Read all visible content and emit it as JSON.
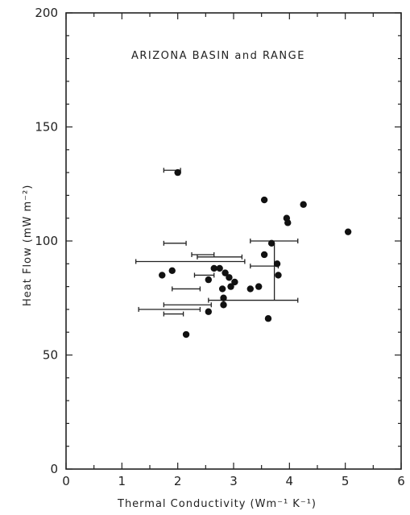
{
  "chart_data": {
    "type": "scatter",
    "title": "ARIZONA  BASIN and RANGE",
    "xlabel": "Thermal  Conductivity  (Wm⁻¹ K⁻¹)",
    "ylabel": "Heat  Flow  (mW m⁻²)",
    "xlim": [
      0,
      6
    ],
    "ylim": [
      0,
      200
    ],
    "xticks": [
      0,
      1,
      2,
      3,
      4,
      5,
      6
    ],
    "yticks": [
      0,
      50,
      100,
      150,
      200
    ],
    "grid": false,
    "points": [
      {
        "x": 2.0,
        "y": 130
      },
      {
        "x": 3.55,
        "y": 118
      },
      {
        "x": 4.25,
        "y": 116
      },
      {
        "x": 3.95,
        "y": 110
      },
      {
        "x": 3.97,
        "y": 108
      },
      {
        "x": 5.05,
        "y": 104
      },
      {
        "x": 3.68,
        "y": 99
      },
      {
        "x": 3.55,
        "y": 94
      },
      {
        "x": 3.78,
        "y": 90
      },
      {
        "x": 2.75,
        "y": 88
      },
      {
        "x": 2.65,
        "y": 88
      },
      {
        "x": 1.9,
        "y": 87
      },
      {
        "x": 2.85,
        "y": 86
      },
      {
        "x": 1.72,
        "y": 85
      },
      {
        "x": 3.8,
        "y": 85
      },
      {
        "x": 2.92,
        "y": 84
      },
      {
        "x": 2.55,
        "y": 83
      },
      {
        "x": 3.02,
        "y": 82
      },
      {
        "x": 2.95,
        "y": 80
      },
      {
        "x": 3.45,
        "y": 80
      },
      {
        "x": 2.8,
        "y": 79
      },
      {
        "x": 3.3,
        "y": 79
      },
      {
        "x": 2.82,
        "y": 75
      },
      {
        "x": 2.82,
        "y": 72
      },
      {
        "x": 2.55,
        "y": 69
      },
      {
        "x": 3.62,
        "y": 66
      },
      {
        "x": 2.15,
        "y": 59
      }
    ],
    "error_bars": [
      {
        "y": 131,
        "xmin": 1.75,
        "xmax": 2.05
      },
      {
        "y": 99,
        "xmin": 1.75,
        "xmax": 2.15
      },
      {
        "y": 91,
        "xmin": 1.25,
        "xmax": 3.2
      },
      {
        "y": 93,
        "xmin": 2.35,
        "xmax": 3.15
      },
      {
        "y": 94,
        "xmin": 2.25,
        "xmax": 2.65
      },
      {
        "y": 100,
        "xmin": 3.3,
        "xmax": 4.15
      },
      {
        "y": 89,
        "xmin": 3.3,
        "xmax": 3.8
      },
      {
        "y": 85,
        "xmin": 2.3,
        "xmax": 2.65
      },
      {
        "y": 79,
        "xmin": 1.9,
        "xmax": 2.4
      },
      {
        "y": 74,
        "xmin": 2.55,
        "xmax": 4.15
      },
      {
        "y": 72,
        "xmin": 1.75,
        "xmax": 2.6
      },
      {
        "y": 70,
        "xmin": 1.3,
        "xmax": 2.4
      },
      {
        "y": 68,
        "xmin": 1.75,
        "xmax": 2.1
      }
    ]
  }
}
